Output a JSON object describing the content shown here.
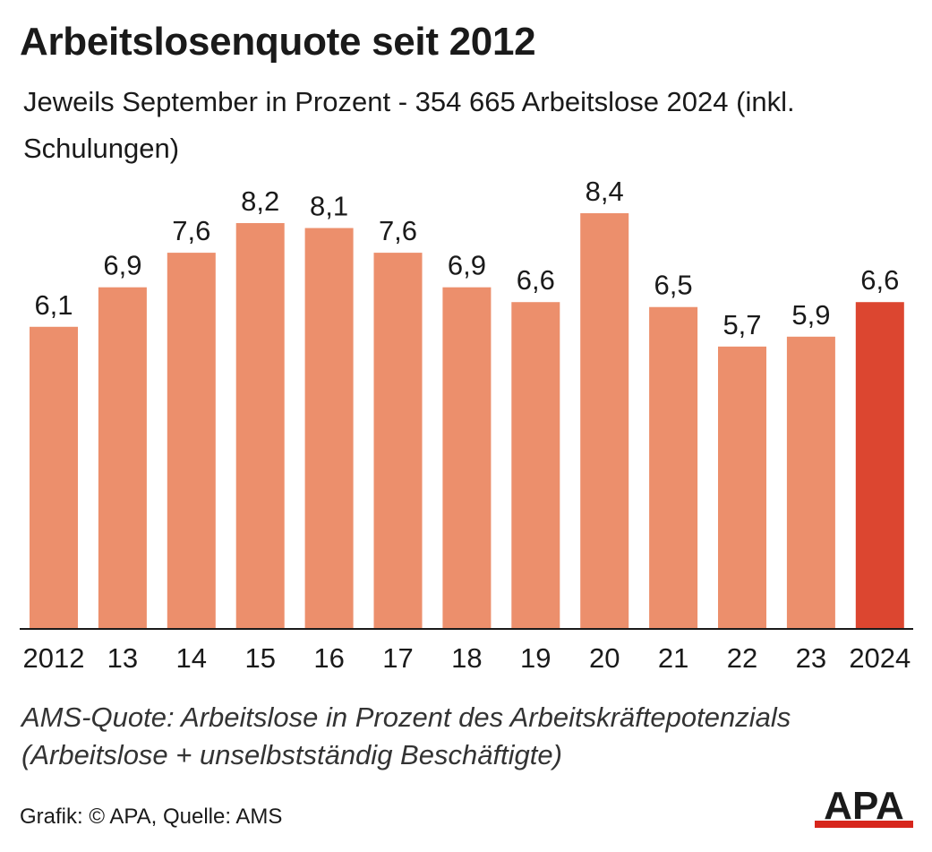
{
  "chart_data": {
    "type": "bar",
    "title": "Arbeitslosenquote seit 2012",
    "subtitle": "Jeweils September in Prozent - 354 665 Arbeitslose 2024 (inkl. Schulungen)",
    "categories": [
      "2012",
      "13",
      "14",
      "15",
      "16",
      "17",
      "18",
      "19",
      "20",
      "21",
      "22",
      "23",
      "2024"
    ],
    "values": [
      6.1,
      6.9,
      7.6,
      8.2,
      8.1,
      7.6,
      6.9,
      6.6,
      8.4,
      6.5,
      5.7,
      5.9,
      6.6
    ],
    "value_labels": [
      "6,1",
      "6,9",
      "7,6",
      "8,2",
      "8,1",
      "7,6",
      "6,9",
      "6,6",
      "8,4",
      "6,5",
      "5,7",
      "5,9",
      "6,6"
    ],
    "highlight_index": 12,
    "ylim": [
      0,
      8.4
    ],
    "grid": false,
    "colors": {
      "bar": "#ec8f6c",
      "highlight": "#dc4630",
      "baseline": "#1a1a1a"
    }
  },
  "note": "AMS-Quote: Arbeitslose in Prozent des Arbeitskräftepotenzials (Arbeitslose + unselbstständig Beschäftigte)",
  "credit": "Grafik: © APA, Quelle: AMS",
  "logo": {
    "text": "APA",
    "icon": "apa-logo",
    "color": "#1a1a1a",
    "accent": "#d7261c"
  }
}
